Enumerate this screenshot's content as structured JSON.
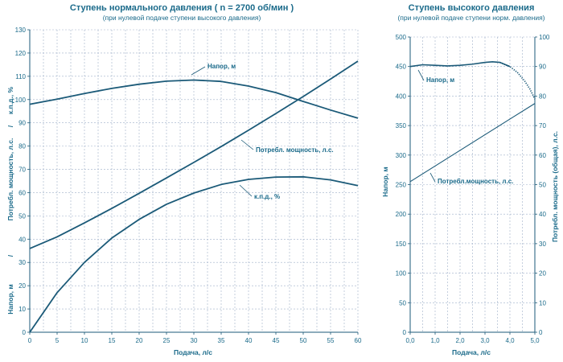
{
  "colors": {
    "line": "#1b5a78",
    "grid": "#9fb0c9",
    "text": "#1a6a8a"
  },
  "chart_data": [
    {
      "type": "line",
      "title": "Ступень нормального давления   ( n = 2700 об/мин )",
      "subtitle": "(при  нулевой подаче ступени высокого давления)",
      "xlabel": "Подача, л/с",
      "ylabel_parts": [
        "Напор, м",
        "/",
        "Потребл. мощность, л.с.",
        "/",
        "к.п.д., %"
      ],
      "xlim": [
        0,
        60
      ],
      "ylim": [
        0,
        130
      ],
      "x_ticks": [
        "0",
        "5",
        "10",
        "15",
        "20",
        "25",
        "30",
        "35",
        "40",
        "45",
        "50",
        "55",
        "60"
      ],
      "y_ticks": [
        "0",
        "10",
        "20",
        "30",
        "40",
        "50",
        "60",
        "70",
        "80",
        "90",
        "100",
        "110",
        "120",
        "130"
      ],
      "grid": true,
      "series": [
        {
          "name": "Напор, м",
          "x": [
            0,
            5,
            10,
            15,
            20,
            25,
            30,
            35,
            40,
            45,
            50,
            55,
            60
          ],
          "y": [
            98,
            100.2,
            102.6,
            104.8,
            106.6,
            107.9,
            108.4,
            107.8,
            105.8,
            103,
            99.2,
            95.5,
            92
          ]
        },
        {
          "name": "Потребл. мощность, л.с.",
          "x": [
            0,
            5,
            10,
            15,
            20,
            25,
            30,
            35,
            40,
            45,
            50,
            55,
            60
          ],
          "y": [
            36,
            41,
            47,
            53.2,
            59.7,
            66.3,
            73,
            79.8,
            86.8,
            94,
            101.3,
            108.8,
            116.5
          ]
        },
        {
          "name": "к.п.д., %",
          "x": [
            0,
            5,
            10,
            15,
            20,
            25,
            30,
            35,
            40,
            45,
            50,
            55,
            60
          ],
          "y": [
            0,
            17,
            30,
            40.5,
            48.5,
            55,
            59.8,
            63.5,
            65.7,
            66.7,
            66.8,
            65.5,
            63
          ]
        }
      ]
    },
    {
      "type": "line",
      "title": "Ступень высокого давления",
      "subtitle": "(при  нулевой подаче ступени норм. давления)",
      "xlabel": "Подача, л/с",
      "ylabel": "Напор, м",
      "ylabel_right": "Потребл. мощность (общая), л.с.",
      "xlim": [
        0,
        5
      ],
      "ylim": [
        0,
        500
      ],
      "ylim_right": [
        0,
        100
      ],
      "x_ticks": [
        "0,0",
        "1,0",
        "2,0",
        "3,0",
        "4,0",
        "5,0"
      ],
      "y_ticks": [
        "0",
        "50",
        "100",
        "150",
        "200",
        "250",
        "300",
        "350",
        "400",
        "450",
        "500"
      ],
      "y_ticks_right": [
        "0",
        "10",
        "20",
        "30",
        "40",
        "50",
        "60",
        "70",
        "80",
        "90",
        "100"
      ],
      "grid": true,
      "series": [
        {
          "name": "Напор, м",
          "axis": "left",
          "x": [
            0,
            0.5,
            1,
            1.5,
            2,
            2.5,
            3,
            3.3,
            3.6,
            4,
            4.3,
            4.6,
            4.8,
            5
          ],
          "y": [
            450,
            453,
            452,
            451,
            452,
            454,
            457,
            458,
            457,
            450,
            440,
            425,
            412,
            395
          ],
          "dashed_from_x": 4.05
        },
        {
          "name": "Потребл.мощность, л.с.",
          "axis": "right",
          "x": [
            0,
            5
          ],
          "y": [
            51,
            77.5
          ]
        }
      ]
    }
  ]
}
